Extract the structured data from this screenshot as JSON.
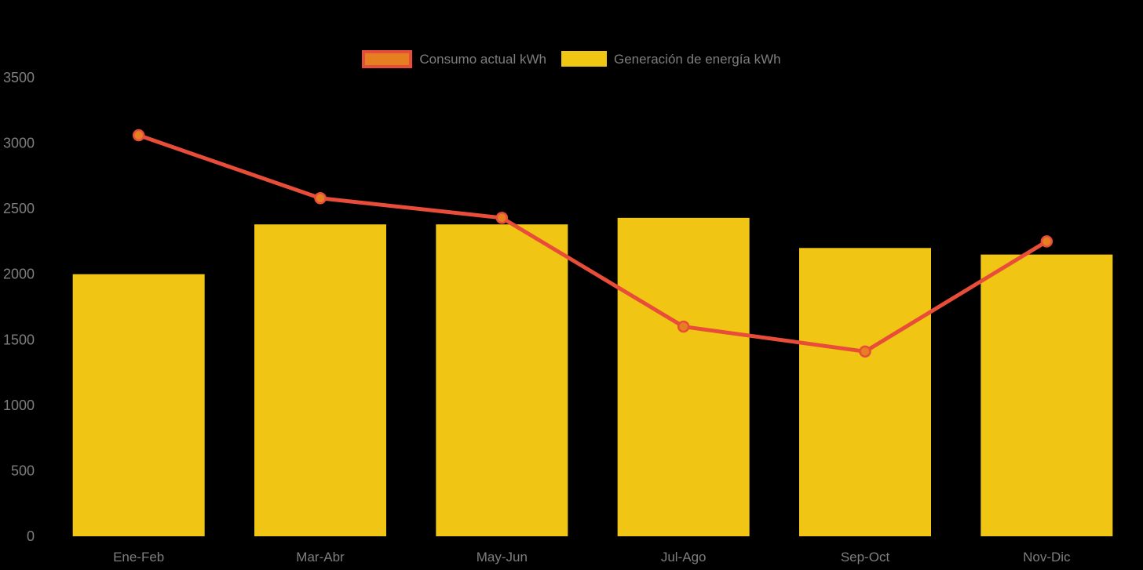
{
  "chart": {
    "background_color": "#000000",
    "axis_text_color": "#7e7e7e"
  },
  "legend": {
    "position": "top-center",
    "items": [
      {
        "label": "Consumo actual kWh",
        "series_type": "line",
        "fill_color": "#e67e22",
        "border_color": "#e84d3a"
      },
      {
        "label": "Generación de energía kWh",
        "series_type": "bar",
        "fill_color": "#f0c513",
        "border_color": "#f0c513"
      }
    ]
  },
  "chart_data": {
    "type": "bar",
    "subtype": "bar-line-combo",
    "title": "",
    "xlabel": "",
    "ylabel": "",
    "categories": [
      "Ene-Feb",
      "Mar-Abr",
      "May-Jun",
      "Jul-Ago",
      "Sep-Oct",
      "Nov-Dic"
    ],
    "series": [
      {
        "name": "Consumo actual kWh",
        "type": "line",
        "values": [
          3060,
          2580,
          2430,
          1600,
          1410,
          2250
        ],
        "line_color": "#e84d3a",
        "point_color": "#e67e22"
      },
      {
        "name": "Generación de energía kWh",
        "type": "bar",
        "values": [
          2000,
          2380,
          2380,
          2430,
          2200,
          2150
        ],
        "color": "#f0c513"
      }
    ],
    "ylim": [
      0,
      3500
    ],
    "yticks": [
      0,
      500,
      1000,
      1500,
      2000,
      2500,
      3000,
      3500
    ],
    "grid": false,
    "legend_position": "top"
  }
}
